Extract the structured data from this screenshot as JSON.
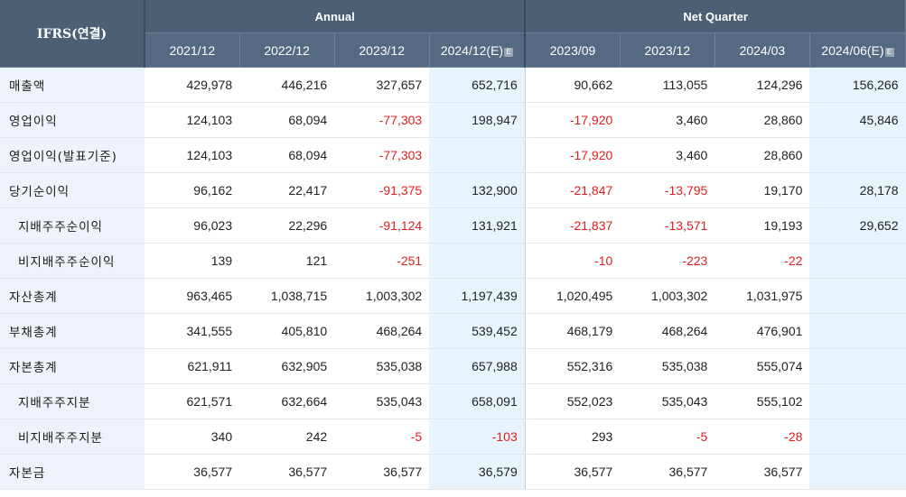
{
  "header": {
    "corner_label": "IFRS(연결)",
    "annual_label": "Annual",
    "quarter_label": "Net Quarter",
    "estimate_icon": "E",
    "annual_periods": [
      "2021/12",
      "2022/12",
      "2023/12",
      "2024/12(E)"
    ],
    "quarter_periods": [
      "2023/09",
      "2023/12",
      "2024/03",
      "2024/06(E)"
    ]
  },
  "colors": {
    "header_bg": "#4d5f75",
    "label_bg": "#eef3f9",
    "estimate_bg": "#e7f4fb",
    "negative": "#e02020"
  },
  "rows": [
    {
      "label": "매출액",
      "indent": false,
      "values": [
        "429,978",
        "446,216",
        "327,657",
        "652,716",
        "90,662",
        "113,055",
        "124,296",
        "156,266"
      ]
    },
    {
      "label": "영업이익",
      "indent": false,
      "values": [
        "124,103",
        "68,094",
        "-77,303",
        "198,947",
        "-17,920",
        "3,460",
        "28,860",
        "45,846"
      ]
    },
    {
      "label": "영업이익(발표기준)",
      "indent": false,
      "values": [
        "124,103",
        "68,094",
        "-77,303",
        "",
        "-17,920",
        "3,460",
        "28,860",
        ""
      ]
    },
    {
      "label": "당기순이익",
      "indent": false,
      "values": [
        "96,162",
        "22,417",
        "-91,375",
        "132,900",
        "-21,847",
        "-13,795",
        "19,170",
        "28,178"
      ]
    },
    {
      "label": "지배주주순이익",
      "indent": true,
      "values": [
        "96,023",
        "22,296",
        "-91,124",
        "131,921",
        "-21,837",
        "-13,571",
        "19,193",
        "29,652"
      ]
    },
    {
      "label": "비지배주주순이익",
      "indent": true,
      "values": [
        "139",
        "121",
        "-251",
        "",
        "-10",
        "-223",
        "-22",
        ""
      ]
    },
    {
      "label": "자산총계",
      "indent": false,
      "values": [
        "963,465",
        "1,038,715",
        "1,003,302",
        "1,197,439",
        "1,020,495",
        "1,003,302",
        "1,031,975",
        ""
      ]
    },
    {
      "label": "부채총계",
      "indent": false,
      "values": [
        "341,555",
        "405,810",
        "468,264",
        "539,452",
        "468,179",
        "468,264",
        "476,901",
        ""
      ]
    },
    {
      "label": "자본총계",
      "indent": false,
      "values": [
        "621,911",
        "632,905",
        "535,038",
        "657,988",
        "552,316",
        "535,038",
        "555,074",
        ""
      ]
    },
    {
      "label": "지배주주지분",
      "indent": true,
      "values": [
        "621,571",
        "632,664",
        "535,043",
        "658,091",
        "552,023",
        "535,043",
        "555,102",
        ""
      ]
    },
    {
      "label": "비지배주주지분",
      "indent": true,
      "values": [
        "340",
        "242",
        "-5",
        "-103",
        "293",
        "-5",
        "-28",
        ""
      ]
    },
    {
      "label": "자본금",
      "indent": false,
      "values": [
        "36,577",
        "36,577",
        "36,577",
        "36,579",
        "36,577",
        "36,577",
        "36,577",
        ""
      ]
    }
  ]
}
